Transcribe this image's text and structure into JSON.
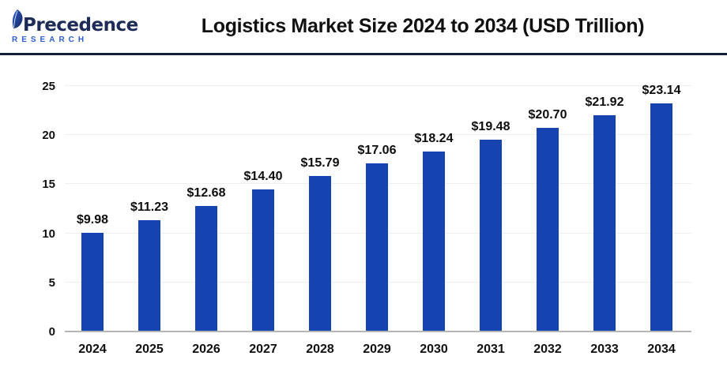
{
  "header": {
    "logo": {
      "line1": "Precedence",
      "line2": "RESEARCH",
      "leaf_icon_color_dark": "#16255c",
      "leaf_icon_color_light": "#2d5ed1"
    },
    "title": "Logistics Market Size 2024 to 2034 (USD Trillion)",
    "divider_color": "#141c3c"
  },
  "chart_data": {
    "type": "bar",
    "title": "Logistics Market Size 2024 to 2034 (USD Trillion)",
    "categories": [
      "2024",
      "2025",
      "2026",
      "2027",
      "2028",
      "2029",
      "2030",
      "2031",
      "2032",
      "2033",
      "2034"
    ],
    "values": [
      9.98,
      11.23,
      12.68,
      14.4,
      15.79,
      17.06,
      18.24,
      19.48,
      20.7,
      21.92,
      23.14
    ],
    "value_labels": [
      "$9.98",
      "$11.23",
      "$12.68",
      "$14.40",
      "$15.79",
      "$17.06",
      "$18.24",
      "$19.48",
      "$20.70",
      "$21.92",
      "$23.14"
    ],
    "xlabel": "",
    "ylabel": "",
    "ylim": [
      0,
      25
    ],
    "yticks": [
      0,
      5,
      10,
      15,
      20,
      25
    ],
    "grid": true,
    "legend": "none",
    "bar_color": "#1543af",
    "gridline_color": "#efefef",
    "baseline_color": "#b5b5b5",
    "unit": "USD Trillion"
  }
}
